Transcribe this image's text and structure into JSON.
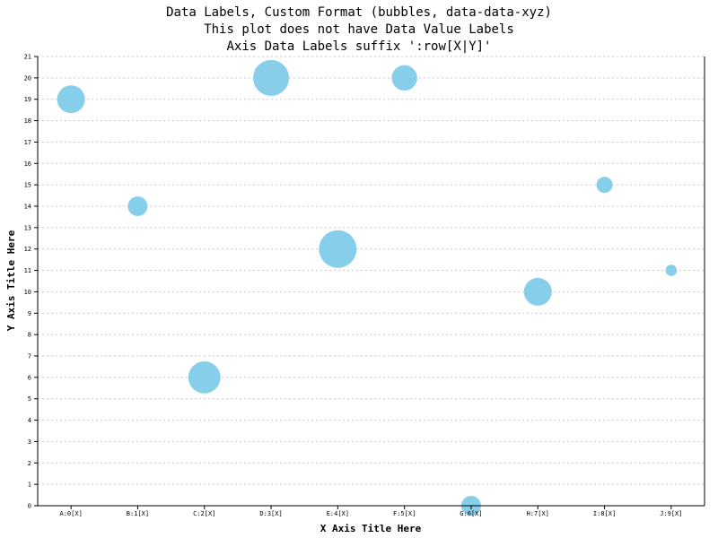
{
  "chart_data": {
    "type": "scatter",
    "subtype": "bubble",
    "title_lines": [
      "Data Labels, Custom Format (bubbles, data-data-xyz)",
      "This plot does not have Data Value Labels",
      "Axis Data Labels suffix ':row[X|Y]'"
    ],
    "xlabel": "X Axis Title Here",
    "ylabel": "Y Axis Title Here",
    "x_tick_labels": [
      "A:0[X]",
      "B:1[X]",
      "C:2[X]",
      "D:3[X]",
      "E:4[X]",
      "F:5[X]",
      "G:6[X]",
      "H:7[X]",
      "I:8[X]",
      "J:9[X]"
    ],
    "x": [
      0,
      1,
      2,
      3,
      4,
      5,
      6,
      7,
      8,
      9
    ],
    "y": [
      19,
      14,
      6,
      20,
      12,
      20,
      0,
      10,
      15,
      11
    ],
    "z": [
      6,
      3,
      8,
      10,
      11,
      5,
      3,
      6,
      2,
      1
    ],
    "xlim": [
      -0.5,
      9.5
    ],
    "ylim": [
      0,
      21
    ],
    "y_ticks": [
      0,
      1,
      2,
      3,
      4,
      5,
      6,
      7,
      8,
      9,
      10,
      11,
      12,
      13,
      14,
      15,
      16,
      17,
      18,
      19,
      20,
      21
    ],
    "grid": "horizontal dashed",
    "legend": "none",
    "colors": {
      "bubble": "#87ceeb",
      "grid": "#c8c8c8",
      "axis": "#000000"
    }
  }
}
